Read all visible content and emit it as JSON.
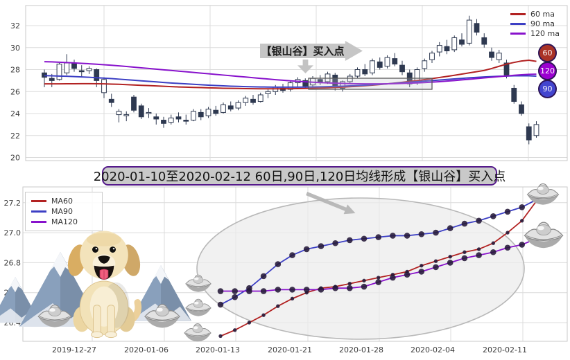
{
  "banner": {
    "text": "2020-01-10至2020-02-12 60日,90日,120日均线形成【银山谷】买入点"
  },
  "top_chart": {
    "callout_label": "【银山谷】买入点",
    "legend": [
      {
        "label": "60 ma",
        "color": "#b22222"
      },
      {
        "label": "90 ma",
        "color": "#3c3fc4"
      },
      {
        "label": "120 ma",
        "color": "#8812cc"
      }
    ],
    "badges": [
      {
        "label": "60",
        "color": "#a93226"
      },
      {
        "label": "120",
        "color": "#9b00d0"
      },
      {
        "label": "90",
        "color": "#4345cf"
      }
    ],
    "y_tick_labels": [
      "20",
      "22",
      "24",
      "26",
      "28",
      "30",
      "32"
    ]
  },
  "bottom_chart": {
    "legend": [
      {
        "label": "MA60",
        "color": "#b22222"
      },
      {
        "label": "MA90",
        "color": "#3c3fc4"
      },
      {
        "label": "MA120",
        "color": "#8812cc"
      }
    ],
    "y_tick_labels": [
      "26.4",
      "26.6",
      "26.8",
      "27.0",
      "27.2"
    ],
    "x_tick_labels": [
      "2019-12-27",
      "2020-01-06",
      "2020-01-13",
      "2020-01-21",
      "2020-01-28",
      "2020-02-04",
      "2020-02-11"
    ]
  },
  "decorations": [
    "golden-retriever-dog",
    "snow-mountains",
    "silver-ingots"
  ],
  "colors": {
    "candle_up": "#ffffff",
    "candle_down": "#2e3950",
    "candle_outline": "#2e3950",
    "grid": "#dcdcdc",
    "box": "#c8c8c8",
    "tick_text": "#3c3c3c",
    "ellipse_fill": "#ececec",
    "ellipse_stroke": "#b8b8b8",
    "highlight_box_stroke": "#5a5a5a"
  },
  "chart_data": [
    {
      "type": "candlestick",
      "title": "",
      "y_ticks": [
        20,
        22,
        24,
        26,
        28,
        30,
        32
      ],
      "ylim": [
        19.4,
        33.2
      ],
      "x_tick_labels": [],
      "grid": true,
      "legend_position": "upper right",
      "annotations": {
        "callout": "【银山谷】买入点",
        "highlight_region": "box around converged 60/90/120 MAs (buy zone)",
        "badges": [
          "60",
          "120",
          "90"
        ]
      },
      "candles_ohlc": [
        [
          27.7,
          28.0,
          26.4,
          27.3
        ],
        [
          27.2,
          27.6,
          26.4,
          27.0
        ],
        [
          27.1,
          28.6,
          27.0,
          28.5
        ],
        [
          27.7,
          29.4,
          27.5,
          28.6
        ],
        [
          28.6,
          28.9,
          27.8,
          28.1
        ],
        [
          27.9,
          28.4,
          27.3,
          27.8
        ],
        [
          27.9,
          28.3,
          27.6,
          28.1
        ],
        [
          28.0,
          28.1,
          26.4,
          27.0
        ],
        [
          25.9,
          27.3,
          25.4,
          27.1
        ],
        [
          25.3,
          25.8,
          24.6,
          25.0
        ],
        [
          23.9,
          24.4,
          23.2,
          24.2
        ],
        [
          23.8,
          24.2,
          23.3,
          23.9
        ],
        [
          25.5,
          25.7,
          24.1,
          24.3
        ],
        [
          24.7,
          24.9,
          23.5,
          23.7
        ],
        [
          24.0,
          24.5,
          23.6,
          24.1
        ],
        [
          23.7,
          24.0,
          23.0,
          23.5
        ],
        [
          23.4,
          23.7,
          22.7,
          23.1
        ],
        [
          23.2,
          23.9,
          23.0,
          23.6
        ],
        [
          23.7,
          24.1,
          23.2,
          23.5
        ],
        [
          23.4,
          23.9,
          23.0,
          23.3
        ],
        [
          23.4,
          24.4,
          23.3,
          24.2
        ],
        [
          24.1,
          24.4,
          23.4,
          23.7
        ],
        [
          23.8,
          24.6,
          23.6,
          24.4
        ],
        [
          24.3,
          24.7,
          23.8,
          24.0
        ],
        [
          24.1,
          25.0,
          24.0,
          24.8
        ],
        [
          24.7,
          25.1,
          24.2,
          24.4
        ],
        [
          24.5,
          25.2,
          24.3,
          25.0
        ],
        [
          25.0,
          25.6,
          24.7,
          25.4
        ],
        [
          25.3,
          25.7,
          24.8,
          25.0
        ],
        [
          25.1,
          25.9,
          25.0,
          25.7
        ],
        [
          25.8,
          26.2,
          25.4,
          26.0
        ],
        [
          26.0,
          26.6,
          25.7,
          26.4
        ],
        [
          26.3,
          26.7,
          25.9,
          26.1
        ],
        [
          26.2,
          27.0,
          26.0,
          26.8
        ],
        [
          26.8,
          27.3,
          26.4,
          27.1
        ],
        [
          27.0,
          27.2,
          26.3,
          26.5
        ],
        [
          26.6,
          27.4,
          26.4,
          27.2
        ],
        [
          27.1,
          27.5,
          26.6,
          26.8
        ],
        [
          26.9,
          27.8,
          26.7,
          27.6
        ],
        [
          27.5,
          27.7,
          26.1,
          26.4
        ],
        [
          26.3,
          27.0,
          26.0,
          26.9
        ],
        [
          26.9,
          27.6,
          26.7,
          27.4
        ],
        [
          27.4,
          28.2,
          27.2,
          28.0
        ],
        [
          28.0,
          28.5,
          27.4,
          27.6
        ],
        [
          27.7,
          29.0,
          27.5,
          28.8
        ],
        [
          28.7,
          29.1,
          28.0,
          28.2
        ],
        [
          28.3,
          29.3,
          28.1,
          29.1
        ],
        [
          29.0,
          29.5,
          28.3,
          28.5
        ],
        [
          28.4,
          28.8,
          27.5,
          27.8
        ],
        [
          27.7,
          28.0,
          26.4,
          26.7
        ],
        [
          26.8,
          28.2,
          26.6,
          28.0
        ],
        [
          28.1,
          29.0,
          27.8,
          28.8
        ],
        [
          28.9,
          29.7,
          28.6,
          29.5
        ],
        [
          29.6,
          30.5,
          29.2,
          30.2
        ],
        [
          30.1,
          30.7,
          29.4,
          29.7
        ],
        [
          29.8,
          31.1,
          29.6,
          30.9
        ],
        [
          30.7,
          31.3,
          30.1,
          30.3
        ],
        [
          30.4,
          32.9,
          30.2,
          32.5
        ],
        [
          32.2,
          32.6,
          31.1,
          31.4
        ],
        [
          30.9,
          31.3,
          30.0,
          30.3
        ],
        [
          29.6,
          30.0,
          28.8,
          29.1
        ],
        [
          28.9,
          29.8,
          28.6,
          29.5
        ],
        [
          28.6,
          28.9,
          27.2,
          27.5
        ],
        [
          26.3,
          26.6,
          24.9,
          25.1
        ],
        [
          24.8,
          25.1,
          23.8,
          24.0
        ],
        [
          22.8,
          23.1,
          21.2,
          21.6
        ],
        [
          22.0,
          23.3,
          21.8,
          23.0
        ]
      ],
      "series": [
        {
          "name": "60 ma",
          "color": "#b22222",
          "values": [
            26.7,
            26.7,
            26.7,
            26.71,
            26.71,
            26.72,
            26.72,
            26.71,
            26.7,
            26.68,
            26.66,
            26.63,
            26.6,
            26.57,
            26.54,
            26.51,
            26.48,
            26.45,
            26.42,
            26.4,
            26.38,
            26.36,
            26.34,
            26.32,
            26.3,
            26.29,
            26.28,
            26.27,
            26.26,
            26.25,
            26.25,
            26.25,
            26.25,
            26.26,
            26.27,
            26.28,
            26.3,
            26.32,
            26.34,
            26.37,
            26.4,
            26.44,
            26.48,
            26.53,
            26.58,
            26.64,
            26.7,
            26.77,
            26.84,
            26.92,
            27.0,
            27.09,
            27.18,
            27.28,
            27.38,
            27.48,
            27.59,
            27.7,
            27.81,
            27.92,
            28.1,
            28.3,
            28.5,
            28.65,
            28.78,
            28.85,
            28.75
          ]
        },
        {
          "name": "90 ma",
          "color": "#3c3fc4",
          "values": [
            27.45,
            27.43,
            27.41,
            27.39,
            27.36,
            27.33,
            27.3,
            27.26,
            27.22,
            27.18,
            27.13,
            27.08,
            27.03,
            26.98,
            26.93,
            26.88,
            26.83,
            26.78,
            26.74,
            26.7,
            26.66,
            26.62,
            26.58,
            26.55,
            26.52,
            26.49,
            26.47,
            26.45,
            26.43,
            26.42,
            26.41,
            26.4,
            26.4,
            26.4,
            26.4,
            26.41,
            26.42,
            26.43,
            26.45,
            26.47,
            26.49,
            26.52,
            26.55,
            26.58,
            26.62,
            26.66,
            26.7,
            26.75,
            26.8,
            26.85,
            26.9,
            26.95,
            27.0,
            27.05,
            27.1,
            27.15,
            27.2,
            27.25,
            27.29,
            27.33,
            27.36,
            27.39,
            27.41,
            27.43,
            27.44,
            27.43,
            27.4
          ]
        },
        {
          "name": "120 ma",
          "color": "#8812cc",
          "values": [
            28.72,
            28.7,
            28.67,
            28.64,
            28.61,
            28.57,
            28.53,
            28.49,
            28.44,
            28.39,
            28.34,
            28.28,
            28.22,
            28.16,
            28.1,
            28.04,
            27.98,
            27.92,
            27.86,
            27.8,
            27.74,
            27.68,
            27.62,
            27.56,
            27.5,
            27.44,
            27.38,
            27.32,
            27.26,
            27.2,
            27.14,
            27.08,
            27.03,
            26.98,
            26.93,
            26.89,
            26.85,
            26.82,
            26.79,
            26.76,
            26.74,
            26.72,
            26.71,
            26.7,
            26.7,
            26.7,
            26.71,
            26.72,
            26.74,
            26.76,
            26.79,
            26.82,
            26.86,
            26.9,
            26.95,
            27.0,
            27.06,
            27.12,
            27.18,
            27.24,
            27.3,
            27.36,
            27.42,
            27.48,
            27.53,
            27.57,
            27.58
          ]
        }
      ]
    },
    {
      "type": "line",
      "title": "",
      "x": [
        "2020-01-10",
        "2020-01-13",
        "2020-01-14",
        "2020-01-15",
        "2020-01-16",
        "2020-01-17",
        "2020-01-21",
        "2020-01-22",
        "2020-01-23",
        "2020-01-24",
        "2020-01-27",
        "2020-01-28",
        "2020-01-29",
        "2020-01-30",
        "2020-01-31",
        "2020-02-03",
        "2020-02-04",
        "2020-02-05",
        "2020-02-06",
        "2020-02-07",
        "2020-02-10",
        "2020-02-11",
        "2020-02-12"
      ],
      "x_tick_labels": [
        "2019-12-27",
        "2020-01-06",
        "2020-01-13",
        "2020-01-21",
        "2020-01-28",
        "2020-02-04",
        "2020-02-11"
      ],
      "y_ticks": [
        26.4,
        26.6,
        26.8,
        27.0,
        27.2
      ],
      "ylim": [
        26.28,
        27.3
      ],
      "grid": true,
      "legend_position": "upper left",
      "annotations": {
        "ellipse_highlight": "large gray ellipse around the MA convergence / silver-valley pattern"
      },
      "series": [
        {
          "name": "MA60",
          "color": "#b22222",
          "values": [
            26.31,
            26.35,
            26.4,
            26.45,
            26.51,
            26.56,
            26.6,
            26.63,
            26.64,
            26.66,
            26.68,
            26.7,
            26.72,
            26.74,
            26.78,
            26.81,
            26.84,
            26.87,
            26.89,
            26.93,
            27.0,
            27.08,
            27.21
          ]
        },
        {
          "name": "MA90",
          "color": "#3c3fc4",
          "values": [
            26.52,
            26.57,
            26.63,
            26.71,
            26.79,
            26.85,
            26.89,
            26.91,
            26.93,
            26.95,
            26.96,
            26.97,
            26.98,
            26.98,
            26.99,
            27.0,
            27.03,
            27.06,
            27.08,
            27.11,
            27.14,
            27.17,
            27.22
          ]
        },
        {
          "name": "MA120",
          "color": "#8812cc",
          "values": [
            26.61,
            26.61,
            26.61,
            26.61,
            26.62,
            26.62,
            26.62,
            26.62,
            26.63,
            26.63,
            26.64,
            26.67,
            26.7,
            26.72,
            26.74,
            26.77,
            26.8,
            26.83,
            26.85,
            26.87,
            26.9,
            26.92,
            26.96
          ]
        }
      ]
    }
  ]
}
